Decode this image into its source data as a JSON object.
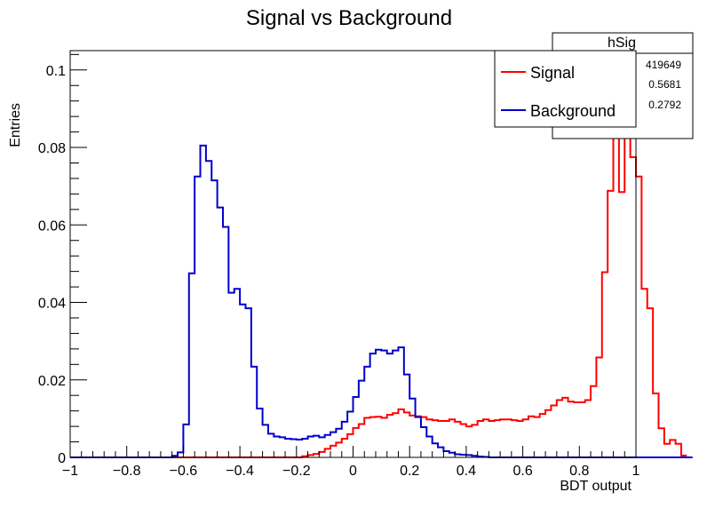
{
  "chart_data": {
    "type": "histogram",
    "title": "Signal vs Background",
    "xlabel": "BDT output",
    "ylabel": "Entries",
    "xlim": [
      -1,
      1
    ],
    "ylim": [
      0,
      0.105
    ],
    "x_ticks": [
      -1,
      -0.8,
      -0.6,
      -0.4,
      -0.2,
      0,
      0.2,
      0.4,
      0.6,
      0.8,
      1
    ],
    "x_tick_labels": [
      "−1",
      "−0.8",
      "−0.6",
      "−0.4",
      "−0.2",
      "0",
      "0.2",
      "0.4",
      "0.6",
      "0.8",
      "1"
    ],
    "y_ticks": [
      0,
      0.02,
      0.04,
      0.06,
      0.08,
      0.1
    ],
    "y_tick_labels": [
      "0",
      "0.02",
      "0.04",
      "0.06",
      "0.08",
      "0.1"
    ],
    "bin_width": 0.02,
    "series": [
      {
        "name": "Signal",
        "color": "#ff0000",
        "bin_edges_start": -1,
        "values": [
          0,
          0,
          0,
          0,
          0,
          0,
          0,
          0,
          0,
          0,
          0,
          0,
          0,
          0,
          0,
          0,
          0,
          0,
          0,
          0,
          0,
          0,
          0,
          0,
          0,
          0,
          0,
          0,
          0,
          0,
          0,
          0,
          0,
          0,
          0,
          0,
          0,
          0,
          0,
          0,
          0,
          0.0003,
          0.0006,
          0.0009,
          0.0014,
          0.0022,
          0.003,
          0.0038,
          0.0048,
          0.006,
          0.0076,
          0.0086,
          0.0102,
          0.0104,
          0.0105,
          0.0102,
          0.011,
          0.0114,
          0.0124,
          0.0116,
          0.0108,
          0.0106,
          0.0104,
          0.0098,
          0.0096,
          0.0094,
          0.0094,
          0.0098,
          0.0092,
          0.0086,
          0.008,
          0.0084,
          0.0094,
          0.0098,
          0.0094,
          0.0096,
          0.0098,
          0.0098,
          0.0096,
          0.0094,
          0.0098,
          0.0106,
          0.0104,
          0.0112,
          0.0122,
          0.0134,
          0.0148,
          0.0154,
          0.0144,
          0.0142,
          0.0142,
          0.0148,
          0.0184,
          0.0258,
          0.0478,
          0.0688,
          0.1005,
          0.0685,
          0.1005,
          0.0775,
          0.0725,
          0.0435,
          0.0385,
          0.0165,
          0.0075,
          0.0035,
          0.0045,
          0.0035,
          0.0005
        ]
      },
      {
        "name": "Background",
        "color": "#0000cc",
        "bin_edges_start": -1,
        "values": [
          0,
          0,
          0,
          0,
          0,
          0,
          0,
          0,
          0,
          0,
          0,
          0,
          0,
          0,
          0,
          0,
          0,
          0,
          0.0004,
          0.0013,
          0.0085,
          0.0475,
          0.0725,
          0.0805,
          0.0765,
          0.0715,
          0.0645,
          0.0595,
          0.0425,
          0.0435,
          0.0395,
          0.0385,
          0.0234,
          0.0126,
          0.0084,
          0.0061,
          0.0054,
          0.0052,
          0.0048,
          0.0047,
          0.0046,
          0.0048,
          0.0054,
          0.0056,
          0.0052,
          0.0058,
          0.0065,
          0.0074,
          0.0092,
          0.0118,
          0.0156,
          0.0198,
          0.0234,
          0.0268,
          0.0278,
          0.0276,
          0.0268,
          0.0276,
          0.0284,
          0.0214,
          0.0152,
          0.0104,
          0.0078,
          0.0054,
          0.0036,
          0.0026,
          0.0016,
          0.0012,
          0.0008,
          0.0007,
          0.0006,
          0.0004,
          0.0002,
          0.0001,
          0,
          0,
          0,
          0,
          0,
          0,
          0,
          0,
          0,
          0,
          0,
          0,
          0,
          0,
          0,
          0,
          0,
          0,
          0,
          0,
          0,
          0,
          0,
          0,
          0,
          0,
          0,
          0,
          0,
          0,
          0,
          0,
          0,
          0,
          0,
          0
        ]
      }
    ],
    "legend_position": "top-right",
    "stats_box": {
      "name": "hSig",
      "values": [
        "419649",
        "0.5681",
        "0.2792"
      ]
    }
  }
}
